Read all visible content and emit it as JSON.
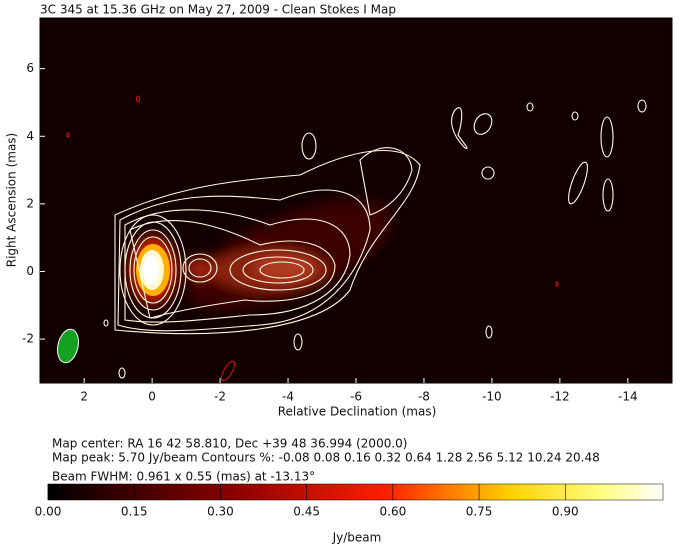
{
  "chart_data": {
    "type": "image-map",
    "title": "3C 345 at 15.36 GHz on May 27, 2009 - Clean Stokes I Map",
    "x_label": "Relative Declination (mas)",
    "y_label": "Right Ascension (mas)",
    "xlim": [
      3.3,
      -15.3
    ],
    "xticks": [
      2,
      0,
      -2,
      -4,
      -6,
      -8,
      -10,
      -12,
      -14
    ],
    "ylim": [
      -3.3,
      7.5
    ],
    "yticks": [
      -2,
      0,
      2,
      4,
      6
    ],
    "notes": [
      "Map center: RA 16 42 58.810, Dec +39 48 36.994 (2000.0)",
      "Map peak: 5.70 Jy/beam   Contours %: -0.08 0.08 0.16 0.32 0.64 1.28 2.56 5.12 10.24 20.48",
      "Beam FWHM: 0.961 x 0.55 (mas) at -13.13°"
    ],
    "colorbar": {
      "label": "Jy/beam",
      "lim": [
        0,
        1.07
      ],
      "ticks": [
        {
          "value": 0,
          "label": "0.00"
        },
        0.15,
        {
          "value": 0.3,
          "label": "0.30"
        },
        0.45,
        {
          "value": 0.6,
          "label": "0.60"
        },
        0.75,
        {
          "value": 0.9,
          "label": "0.90"
        }
      ]
    }
  }
}
